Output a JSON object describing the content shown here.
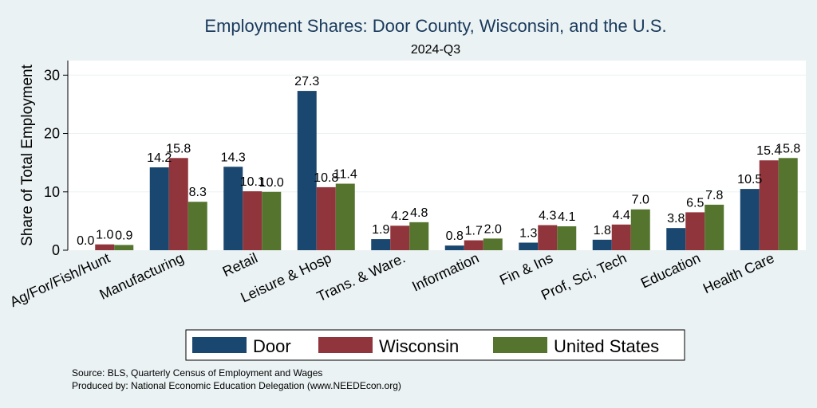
{
  "chart_data": {
    "type": "bar",
    "title": "Employment Shares: Door County, Wisconsin, and the U.S.",
    "subtitle": "2024-Q3",
    "ylabel": "Share of Total Employment",
    "xlabel": "",
    "ylim": [
      0,
      32.5
    ],
    "yticks": [
      0,
      10,
      20,
      30
    ],
    "grid": true,
    "legend_position": "bottom",
    "categories": [
      "Ag/For/Fish/Hunt",
      "Manufacturing",
      "Retail",
      "Leisure & Hosp",
      "Trans. & Ware.",
      "Information",
      "Fin & Ins",
      "Prof, Sci, Tech",
      "Education",
      "Health Care"
    ],
    "series": [
      {
        "name": "Door",
        "color": "#1a476f",
        "values": [
          0.0,
          14.2,
          14.3,
          27.3,
          1.9,
          0.8,
          1.3,
          1.8,
          3.8,
          10.5
        ],
        "labels": [
          "0.0",
          "14.2",
          "14.3",
          "27.3",
          "1.9",
          "0.8",
          "1.3",
          "1.8",
          "3.8",
          "10.5"
        ]
      },
      {
        "name": "Wisconsin",
        "color": "#90353b",
        "values": [
          1.0,
          15.8,
          10.1,
          10.8,
          4.2,
          1.7,
          4.3,
          4.4,
          6.5,
          15.4
        ],
        "labels": [
          "1.0",
          "15.8",
          "10.1",
          "10.8",
          "4.2",
          "1.7",
          "4.3",
          "4.4",
          "6.5",
          "15.4"
        ]
      },
      {
        "name": "United States",
        "color": "#55752f",
        "values": [
          0.9,
          8.3,
          10.0,
          11.4,
          4.8,
          2.0,
          4.1,
          7.0,
          7.8,
          15.8
        ],
        "labels": [
          "0.9",
          "8.3",
          "10.0",
          "11.4",
          "4.8",
          "2.0",
          "4.1",
          "7.0",
          "7.8",
          "15.8"
        ]
      }
    ]
  },
  "notes": {
    "source": "Source: BLS, Quarterly Census of Employment and Wages",
    "produced_by": "Produced by: National Economic Education Delegation (www.NEEDEcon.org)"
  }
}
